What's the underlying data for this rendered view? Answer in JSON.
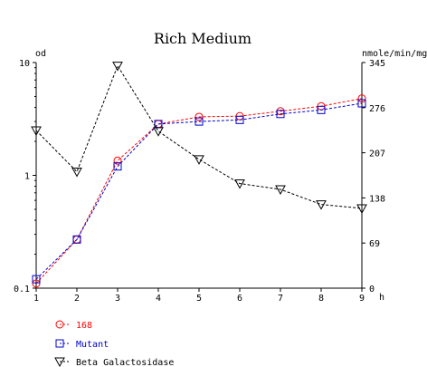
{
  "chart_data": {
    "type": "line",
    "title": "Rich Medium",
    "left_axis": {
      "label": "od",
      "scale": "log",
      "range": [
        0.1,
        10
      ],
      "ticks": [
        "10",
        "1",
        "0.1"
      ]
    },
    "right_axis": {
      "label": "nmole/min/mg",
      "range": [
        0,
        345
      ],
      "ticks": [
        "345",
        "276",
        "207",
        "138",
        "69",
        "0"
      ]
    },
    "x_axis": {
      "label": "h",
      "range": [
        1,
        9
      ],
      "ticks": [
        "1",
        "2",
        "3",
        "4",
        "5",
        "6",
        "7",
        "8",
        "9"
      ]
    },
    "x": [
      1,
      2,
      3,
      4,
      5,
      6,
      7,
      8,
      9
    ],
    "series": [
      {
        "name": "168",
        "axis": "left",
        "marker": "circle",
        "color": "#ff0000",
        "values": [
          0.11,
          0.27,
          1.35,
          2.85,
          3.3,
          3.35,
          3.7,
          4.1,
          4.8
        ]
      },
      {
        "name": "Mutant",
        "axis": "left",
        "marker": "square",
        "color": "#0000cc",
        "values": [
          0.12,
          0.27,
          1.2,
          2.85,
          3.0,
          3.1,
          3.5,
          3.8,
          4.35
        ]
      },
      {
        "name": "Beta Galactosidase",
        "axis": "right",
        "marker": "triangle-down",
        "color": "#000000",
        "values": [
          241,
          178,
          340,
          240,
          197,
          160,
          151,
          128,
          122
        ]
      }
    ],
    "legend_position": "bottom-left",
    "grid": false
  }
}
